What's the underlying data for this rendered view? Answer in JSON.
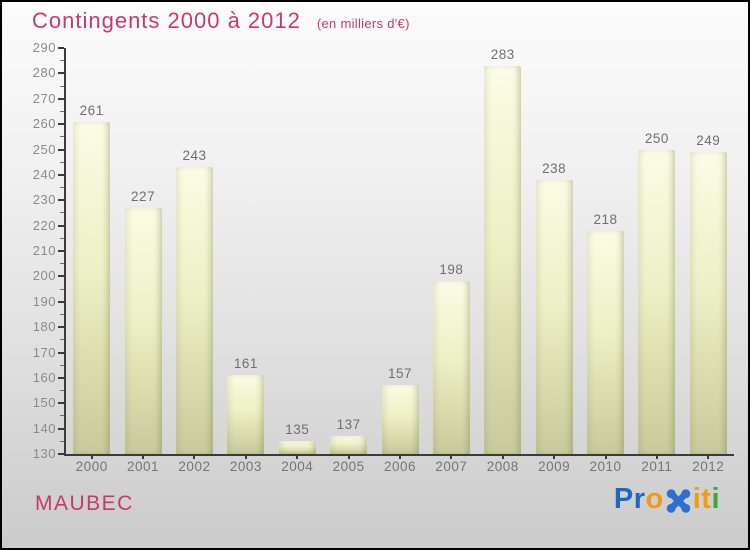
{
  "header": {
    "title": "Contingents 2000 à 2012",
    "subtitle": "(en milliers d'€)",
    "accent_color": "#c8396b"
  },
  "chart_data": {
    "type": "bar",
    "title": "Contingents 2000 à 2012",
    "subtitle": "(en milliers d'€)",
    "categories": [
      "2000",
      "2001",
      "2002",
      "2003",
      "2004",
      "2005",
      "2006",
      "2007",
      "2008",
      "2009",
      "2010",
      "2011",
      "2012"
    ],
    "values": [
      261,
      227,
      243,
      161,
      135,
      137,
      157,
      198,
      283,
      238,
      218,
      250,
      249
    ],
    "xlabel": "",
    "ylabel": "",
    "ylim": [
      130,
      290
    ],
    "ytick_step": 10,
    "minor_tick_step": 5,
    "grid": false,
    "legend": null,
    "bar_color_top": "#fbfce4",
    "bar_color_mid": "#eef0c6",
    "bar_color_bottom": "#c9ca9b",
    "axis_color": "#3b3b3b",
    "value_label_color": "#6f6f6f",
    "tick_label_color": "#8b8b8b"
  },
  "footer": {
    "location_label": "MAUBEC",
    "logo": {
      "name": "Proxiti",
      "letters": [
        {
          "char": "P",
          "color": "#2066c8"
        },
        {
          "char": "r",
          "color": "#2066c8"
        },
        {
          "char": "o",
          "color": "#f09a18"
        },
        {
          "char": "x",
          "color": "#2e6fd2",
          "icon": true
        },
        {
          "char": "i",
          "color": "#f09a18"
        },
        {
          "char": "t",
          "color": "#f09a18"
        },
        {
          "char": "i",
          "color": "#3fa43c"
        }
      ]
    }
  }
}
